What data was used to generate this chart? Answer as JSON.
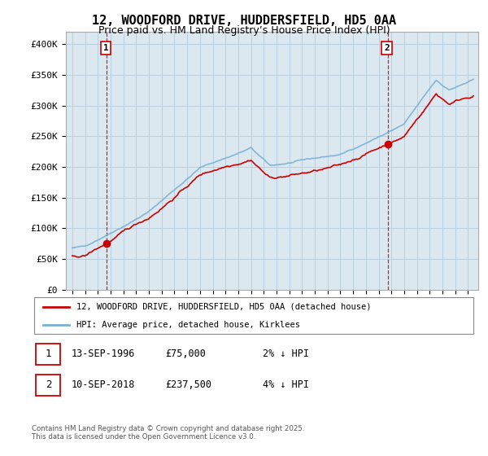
{
  "title": "12, WOODFORD DRIVE, HUDDERSFIELD, HD5 0AA",
  "subtitle": "Price paid vs. HM Land Registry’s House Price Index (HPI)",
  "ylim": [
    0,
    420000
  ],
  "yticks": [
    0,
    50000,
    100000,
    150000,
    200000,
    250000,
    300000,
    350000,
    400000
  ],
  "ytick_labels": [
    "£0",
    "£50K",
    "£100K",
    "£150K",
    "£200K",
    "£250K",
    "£300K",
    "£350K",
    "£400K"
  ],
  "xlim_start": 1993.5,
  "xlim_end": 2025.8,
  "sale1_date": 1996.71,
  "sale1_price": 75000,
  "sale1_label": "1",
  "sale2_date": 2018.71,
  "sale2_price": 237500,
  "sale2_label": "2",
  "house_color": "#cc0000",
  "hpi_color": "#7ab0d4",
  "background_color": "#dce8f0",
  "grid_color": "#b8cfe0",
  "vline_color": "#cc0000",
  "legend_house": "12, WOODFORD DRIVE, HUDDERSFIELD, HD5 0AA (detached house)",
  "legend_hpi": "HPI: Average price, detached house, Kirklees",
  "table_row1": [
    "1",
    "13-SEP-1996",
    "£75,000",
    "2% ↓ HPI"
  ],
  "table_row2": [
    "2",
    "10-SEP-2018",
    "£237,500",
    "4% ↓ HPI"
  ],
  "footnote": "Contains HM Land Registry data © Crown copyright and database right 2025.\nThis data is licensed under the Open Government Licence v3.0.",
  "title_fontsize": 11,
  "subtitle_fontsize": 9,
  "axis_fontsize": 8
}
